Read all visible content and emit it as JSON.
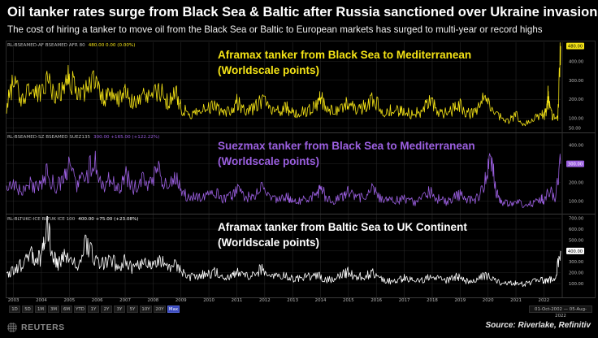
{
  "title": "Oil tanker rates surge from Black Sea & Baltic after Russia sanctioned over Ukraine invasion",
  "subtitle": "The cost of hiring a tanker to move oil from the Black Sea or Baltic to European markets has surged to multi-year or record highs",
  "source": "Source: Riverlake, Refinitiv",
  "logo_text": "REUTERS",
  "range_buttons": [
    "1D",
    "5D",
    "1M",
    "3M",
    "6M",
    "YTD",
    "1Y",
    "2Y",
    "3Y",
    "5Y",
    "10Y",
    "20Y",
    "Max"
  ],
  "active_range": "Max",
  "date_range": "01-Oct-2002 — 05-Aug-2022",
  "colors": {
    "series1": "#f5e416",
    "series2": "#9b5fe0",
    "series3": "#ffffff",
    "grid": "#262626",
    "axis_text": "#bbbbbb"
  },
  "chart_data": {
    "type": "line",
    "x_start": "2002-10-01",
    "x_end": "2022-08-05",
    "x_ticks": [
      "2003",
      "2004",
      "2005",
      "2006",
      "2007",
      "2008",
      "2009",
      "2010",
      "2011",
      "2012",
      "2013",
      "2014",
      "2015",
      "2016",
      "2017",
      "2018",
      "2019",
      "2020",
      "2021",
      "2022"
    ],
    "panels": [
      {
        "series_name": "Aframax tanker from Black Sea to Mediterranean\n(Worldscale points)",
        "info_code": "RL-BSEAMED-AF",
        "info_desc": "BSEAMED AFR 80",
        "info_values": "480.00  0.00 (0.00%)",
        "color": "#f5e416",
        "last_value": "480.00",
        "y_ticks": [
          50,
          100,
          200,
          300,
          400
        ],
        "y_tick_labels": [
          "50.00",
          "100.00",
          "200.00",
          "300.00",
          "400.00"
        ],
        "ylim": [
          30,
          500
        ],
        "x": [
          2002.75,
          2003.0,
          2003.3,
          2003.6,
          2003.9,
          2004.2,
          2004.5,
          2004.8,
          2005.0,
          2005.3,
          2005.6,
          2005.9,
          2006.2,
          2006.5,
          2006.8,
          2007.0,
          2007.3,
          2007.6,
          2007.9,
          2008.2,
          2008.5,
          2008.8,
          2009.0,
          2009.3,
          2009.6,
          2009.9,
          2010.2,
          2010.5,
          2010.8,
          2011.0,
          2011.3,
          2011.6,
          2011.9,
          2012.2,
          2012.5,
          2012.8,
          2013.0,
          2013.3,
          2013.6,
          2013.9,
          2014.0,
          2014.2,
          2014.5,
          2014.8,
          2015.0,
          2015.3,
          2015.6,
          2015.9,
          2016.2,
          2016.5,
          2016.8,
          2017.0,
          2017.3,
          2017.6,
          2017.9,
          2018.2,
          2018.5,
          2018.8,
          2019.0,
          2019.3,
          2019.6,
          2019.9,
          2020.2,
          2020.5,
          2020.8,
          2021.0,
          2021.3,
          2021.6,
          2021.9,
          2022.0,
          2022.1,
          2022.15,
          2022.2,
          2022.3,
          2022.5,
          2022.6
        ],
        "y": [
          160,
          290,
          180,
          250,
          210,
          300,
          200,
          260,
          320,
          210,
          240,
          300,
          200,
          230,
          190,
          260,
          170,
          210,
          200,
          250,
          180,
          230,
          150,
          120,
          130,
          140,
          160,
          130,
          140,
          180,
          140,
          150,
          190,
          140,
          130,
          150,
          120,
          130,
          140,
          160,
          210,
          140,
          130,
          150,
          180,
          140,
          160,
          200,
          130,
          140,
          130,
          140,
          120,
          130,
          180,
          140,
          120,
          150,
          160,
          120,
          130,
          220,
          130,
          100,
          90,
          110,
          70,
          95,
          120,
          110,
          130,
          240,
          150,
          110,
          100,
          480
        ]
      },
      {
        "series_name": "Suezmax tanker from Black Sea to Mediterranean\n(Worldscale points)",
        "info_code": "RL-BSEAMED-SZ",
        "info_desc": "BSEAMED SUEZ135",
        "info_values": "300.00  +165.00 (+122.22%)",
        "color": "#9b5fe0",
        "last_value": "300.00",
        "y_ticks": [
          100,
          200,
          300,
          400
        ],
        "y_tick_labels": [
          "100.00",
          "200.00",
          "300.00",
          "400.00"
        ],
        "ylim": [
          40,
          460
        ],
        "x": [
          2002.75,
          2003.0,
          2003.3,
          2003.6,
          2003.9,
          2004.2,
          2004.5,
          2004.8,
          2005.0,
          2005.3,
          2005.6,
          2005.9,
          2006.2,
          2006.5,
          2006.8,
          2007.0,
          2007.3,
          2007.6,
          2007.9,
          2008.2,
          2008.5,
          2008.8,
          2009.0,
          2009.3,
          2009.6,
          2009.9,
          2010.2,
          2010.5,
          2010.8,
          2011.0,
          2011.3,
          2011.6,
          2011.9,
          2012.2,
          2012.5,
          2012.8,
          2013.0,
          2013.3,
          2013.6,
          2013.9,
          2014.0,
          2014.2,
          2014.5,
          2014.8,
          2015.0,
          2015.3,
          2015.6,
          2015.9,
          2016.2,
          2016.5,
          2016.8,
          2017.0,
          2017.3,
          2017.6,
          2017.9,
          2018.2,
          2018.5,
          2018.8,
          2019.0,
          2019.3,
          2019.6,
          2019.9,
          2020.1,
          2020.3,
          2020.5,
          2020.8,
          2021.0,
          2021.3,
          2021.6,
          2021.9,
          2022.0,
          2022.2,
          2022.4,
          2022.6
        ],
        "y": [
          150,
          180,
          140,
          200,
          160,
          240,
          170,
          210,
          270,
          180,
          220,
          330,
          180,
          210,
          160,
          240,
          160,
          210,
          190,
          260,
          170,
          220,
          150,
          110,
          120,
          130,
          150,
          110,
          120,
          160,
          110,
          130,
          170,
          110,
          100,
          120,
          90,
          100,
          110,
          130,
          180,
          110,
          100,
          120,
          150,
          110,
          130,
          160,
          100,
          110,
          100,
          110,
          90,
          100,
          150,
          110,
          90,
          120,
          130,
          100,
          110,
          200,
          330,
          140,
          90,
          80,
          95,
          70,
          85,
          110,
          100,
          150,
          110,
          300
        ]
      },
      {
        "series_name": "Aframax tanker from Baltic Sea to UK Continent\n(Worldscale points)",
        "info_code": "RL-BLTUKC-ICE",
        "info_desc": "BLTUK ICE 100",
        "info_values": "400.00  +75.00 (+23.08%)",
        "color": "#ffffff",
        "last_value": "400.00",
        "y_ticks": [
          100,
          200,
          300,
          400,
          500,
          600,
          700
        ],
        "y_tick_labels": [
          "100.00",
          "200.00",
          "300.00",
          "400.00",
          "500.00",
          "600.00",
          "700.00"
        ],
        "ylim": [
          40,
          720
        ],
        "x": [
          2002.75,
          2003.0,
          2003.3,
          2003.6,
          2003.8,
          2004.0,
          2004.2,
          2004.4,
          2004.6,
          2004.8,
          2005.0,
          2005.3,
          2005.6,
          2005.9,
          2006.2,
          2006.5,
          2006.8,
          2007.0,
          2007.3,
          2007.6,
          2007.9,
          2008.2,
          2008.5,
          2008.8,
          2009.0,
          2009.3,
          2009.6,
          2009.9,
          2010.2,
          2010.5,
          2010.8,
          2011.0,
          2011.3,
          2011.6,
          2011.9,
          2012.2,
          2012.5,
          2012.8,
          2013.0,
          2013.3,
          2013.6,
          2013.9,
          2014.2,
          2014.5,
          2014.8,
          2015.0,
          2015.3,
          2015.6,
          2015.9,
          2016.2,
          2016.5,
          2016.8,
          2017.0,
          2017.3,
          2017.6,
          2017.9,
          2018.2,
          2018.5,
          2018.8,
          2019.0,
          2019.3,
          2019.6,
          2019.9,
          2020.2,
          2020.5,
          2020.8,
          2021.0,
          2021.3,
          2021.6,
          2021.9,
          2022.0,
          2022.2,
          2022.4,
          2022.6
        ],
        "y": [
          170,
          230,
          260,
          380,
          300,
          330,
          660,
          340,
          260,
          350,
          300,
          250,
          480,
          300,
          280,
          330,
          220,
          300,
          230,
          260,
          270,
          320,
          230,
          290,
          210,
          150,
          170,
          180,
          200,
          160,
          150,
          200,
          160,
          180,
          230,
          170,
          150,
          170,
          140,
          150,
          160,
          170,
          130,
          140,
          180,
          200,
          150,
          170,
          190,
          140,
          120,
          130,
          150,
          120,
          130,
          150,
          140,
          120,
          160,
          150,
          110,
          130,
          170,
          140,
          100,
          110,
          100,
          90,
          110,
          130,
          120,
          130,
          140,
          400
        ]
      }
    ]
  }
}
